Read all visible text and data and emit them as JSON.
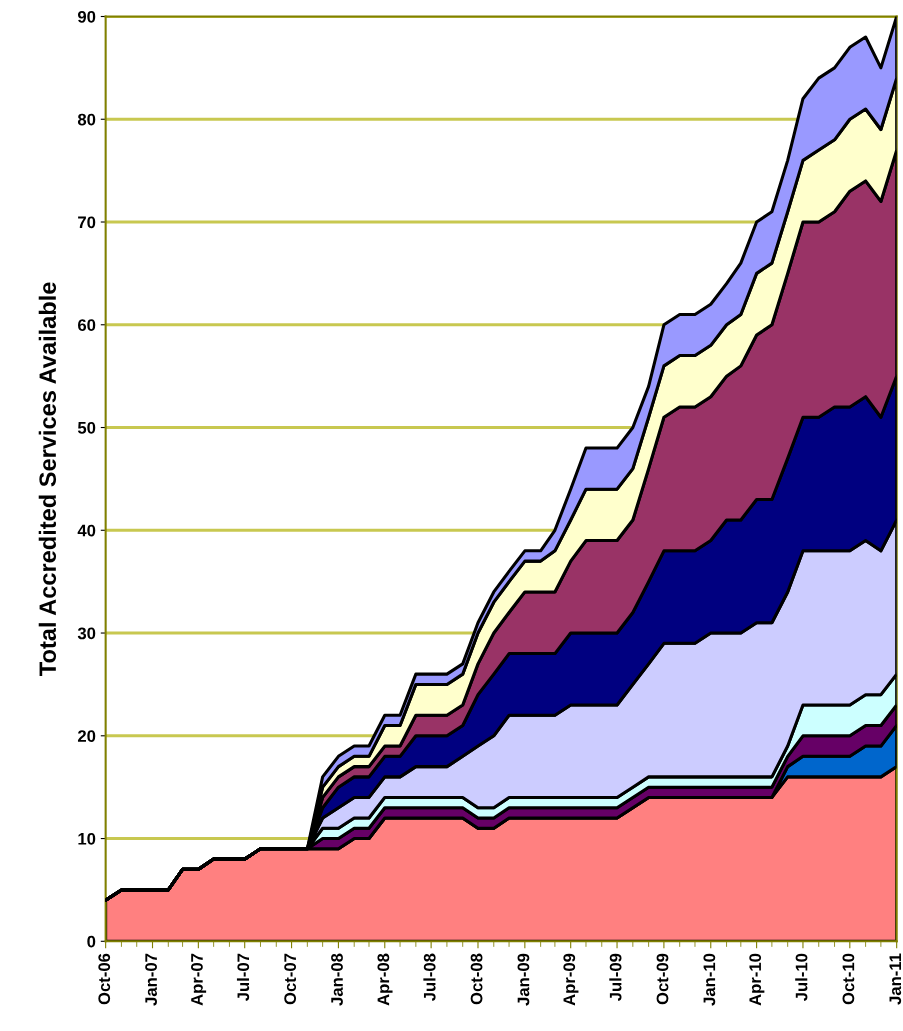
{
  "chart_data": {
    "type": "area",
    "stacked": true,
    "ylabel": "Total Accredited Services Available",
    "x": [
      "2006-10",
      "2006-11",
      "2006-12",
      "2007-01",
      "2007-02",
      "2007-03",
      "2007-04",
      "2007-05",
      "2007-06",
      "2007-07",
      "2007-08",
      "2007-09",
      "2007-10",
      "2007-11",
      "2007-12",
      "2008-01",
      "2008-02",
      "2008-03",
      "2008-04",
      "2008-05",
      "2008-06",
      "2008-07",
      "2008-08",
      "2008-09",
      "2008-10",
      "2008-11",
      "2008-12",
      "2009-01",
      "2009-02",
      "2009-03",
      "2009-04",
      "2009-05",
      "2009-06",
      "2009-07",
      "2009-08",
      "2009-09",
      "2009-10",
      "2009-11",
      "2009-12",
      "2010-01",
      "2010-02",
      "2010-03",
      "2010-04",
      "2010-05",
      "2010-06",
      "2010-07",
      "2010-08",
      "2010-09",
      "2010-10",
      "2010-11",
      "2010-12",
      "2011-01"
    ],
    "series": [
      {
        "color": "#ff8080",
        "values": [
          4,
          5,
          5,
          5,
          5,
          7,
          7,
          8,
          8,
          8,
          9,
          9,
          9,
          9,
          9,
          9,
          10,
          10,
          12,
          12,
          12,
          12,
          12,
          12,
          11,
          11,
          12,
          12,
          12,
          12,
          12,
          12,
          12,
          12,
          13,
          14,
          14,
          14,
          14,
          14,
          14,
          14,
          14,
          14,
          16,
          16,
          16,
          16,
          16,
          16,
          16,
          17
        ]
      },
      {
        "color": "#0066cc",
        "values": [
          0,
          0,
          0,
          0,
          0,
          0,
          0,
          0,
          0,
          0,
          0,
          0,
          0,
          0,
          0,
          0,
          0,
          0,
          0,
          0,
          0,
          0,
          0,
          0,
          0,
          0,
          0,
          0,
          0,
          0,
          0,
          0,
          0,
          0,
          0,
          0,
          0,
          0,
          0,
          0,
          0,
          0,
          0,
          0,
          1,
          2,
          2,
          2,
          2,
          3,
          3,
          4
        ]
      },
      {
        "color": "#660066",
        "values": [
          0,
          0,
          0,
          0,
          0,
          0,
          0,
          0,
          0,
          0,
          0,
          0,
          0,
          0,
          1,
          1,
          1,
          1,
          1,
          1,
          1,
          1,
          1,
          1,
          1,
          1,
          1,
          1,
          1,
          1,
          1,
          1,
          1,
          1,
          1,
          1,
          1,
          1,
          1,
          1,
          1,
          1,
          1,
          1,
          1,
          2,
          2,
          2,
          2,
          2,
          2,
          2
        ]
      },
      {
        "color": "#ccffff",
        "values": [
          0,
          0,
          0,
          0,
          0,
          0,
          0,
          0,
          0,
          0,
          0,
          0,
          0,
          0,
          1,
          1,
          1,
          1,
          1,
          1,
          1,
          1,
          1,
          1,
          1,
          1,
          1,
          1,
          1,
          1,
          1,
          1,
          1,
          1,
          1,
          1,
          1,
          1,
          1,
          1,
          1,
          1,
          1,
          1,
          1,
          3,
          3,
          3,
          3,
          3,
          3,
          3
        ]
      },
      {
        "color": "#ccccff",
        "values": [
          0,
          0,
          0,
          0,
          0,
          0,
          0,
          0,
          0,
          0,
          0,
          0,
          0,
          0,
          1,
          2,
          2,
          2,
          2,
          2,
          3,
          3,
          3,
          4,
          6,
          7,
          8,
          8,
          8,
          8,
          9,
          9,
          9,
          9,
          10,
          11,
          13,
          13,
          13,
          14,
          14,
          14,
          15,
          15,
          15,
          15,
          15,
          15,
          15,
          15,
          14,
          15
        ]
      },
      {
        "color": "#000080",
        "values": [
          0,
          0,
          0,
          0,
          0,
          0,
          0,
          0,
          0,
          0,
          0,
          0,
          0,
          0,
          1,
          2,
          2,
          2,
          2,
          2,
          3,
          3,
          3,
          3,
          5,
          6,
          6,
          6,
          6,
          6,
          7,
          7,
          7,
          7,
          7,
          8,
          9,
          9,
          9,
          9,
          11,
          11,
          12,
          12,
          13,
          13,
          13,
          14,
          14,
          14,
          13,
          14
        ]
      },
      {
        "color": "#993366",
        "values": [
          0,
          0,
          0,
          0,
          0,
          0,
          0,
          0,
          0,
          0,
          0,
          0,
          0,
          0,
          1,
          1,
          1,
          1,
          1,
          1,
          2,
          2,
          2,
          2,
          3,
          4,
          4,
          6,
          6,
          6,
          7,
          9,
          9,
          9,
          9,
          11,
          13,
          14,
          14,
          14,
          14,
          15,
          16,
          17,
          18,
          19,
          19,
          19,
          21,
          21,
          21,
          22
        ]
      },
      {
        "color": "#ffffcc",
        "values": [
          0,
          0,
          0,
          0,
          0,
          0,
          0,
          0,
          0,
          0,
          0,
          0,
          0,
          0,
          1,
          1,
          1,
          1,
          2,
          2,
          3,
          3,
          3,
          3,
          3,
          3,
          3,
          3,
          3,
          4,
          4,
          5,
          5,
          5,
          5,
          5,
          5,
          5,
          5,
          5,
          5,
          5,
          6,
          6,
          6,
          6,
          7,
          7,
          7,
          7,
          7,
          7
        ]
      },
      {
        "color": "#9999ff",
        "values": [
          0,
          0,
          0,
          0,
          0,
          0,
          0,
          0,
          0,
          0,
          0,
          0,
          0,
          0,
          1,
          1,
          1,
          1,
          1,
          1,
          1,
          1,
          1,
          1,
          1,
          1,
          1,
          1,
          1,
          2,
          3,
          4,
          4,
          4,
          4,
          3,
          4,
          4,
          4,
          4,
          4,
          5,
          5,
          5,
          5,
          6,
          7,
          7,
          7,
          7,
          6,
          6
        ]
      }
    ],
    "xlim": [
      "2006-10",
      "2011-01"
    ],
    "xticks": [
      {
        "value": "2006-10",
        "label": "Oct-06"
      },
      {
        "value": "2007-01",
        "label": "Jan-07"
      },
      {
        "value": "2007-04",
        "label": "Apr-07"
      },
      {
        "value": "2007-07",
        "label": "Jul-07"
      },
      {
        "value": "2007-10",
        "label": "Oct-07"
      },
      {
        "value": "2008-01",
        "label": "Jan-08"
      },
      {
        "value": "2008-04",
        "label": "Apr-08"
      },
      {
        "value": "2008-07",
        "label": "Jul-08"
      },
      {
        "value": "2008-10",
        "label": "Oct-08"
      },
      {
        "value": "2009-01",
        "label": "Jan-09"
      },
      {
        "value": "2009-04",
        "label": "Apr-09"
      },
      {
        "value": "2009-07",
        "label": "Jul-09"
      },
      {
        "value": "2009-10",
        "label": "Oct-09"
      },
      {
        "value": "2010-01",
        "label": "Jan-10"
      },
      {
        "value": "2010-04",
        "label": "Apr-10"
      },
      {
        "value": "2010-07",
        "label": "Jul-10"
      },
      {
        "value": "2010-10",
        "label": "Oct-10"
      },
      {
        "value": "2011-01",
        "label": "Jan-11"
      }
    ],
    "ylim": [
      0,
      90
    ],
    "yticks": [
      0,
      10,
      20,
      30,
      40,
      50,
      60,
      70,
      80,
      90
    ],
    "grid": "y"
  }
}
